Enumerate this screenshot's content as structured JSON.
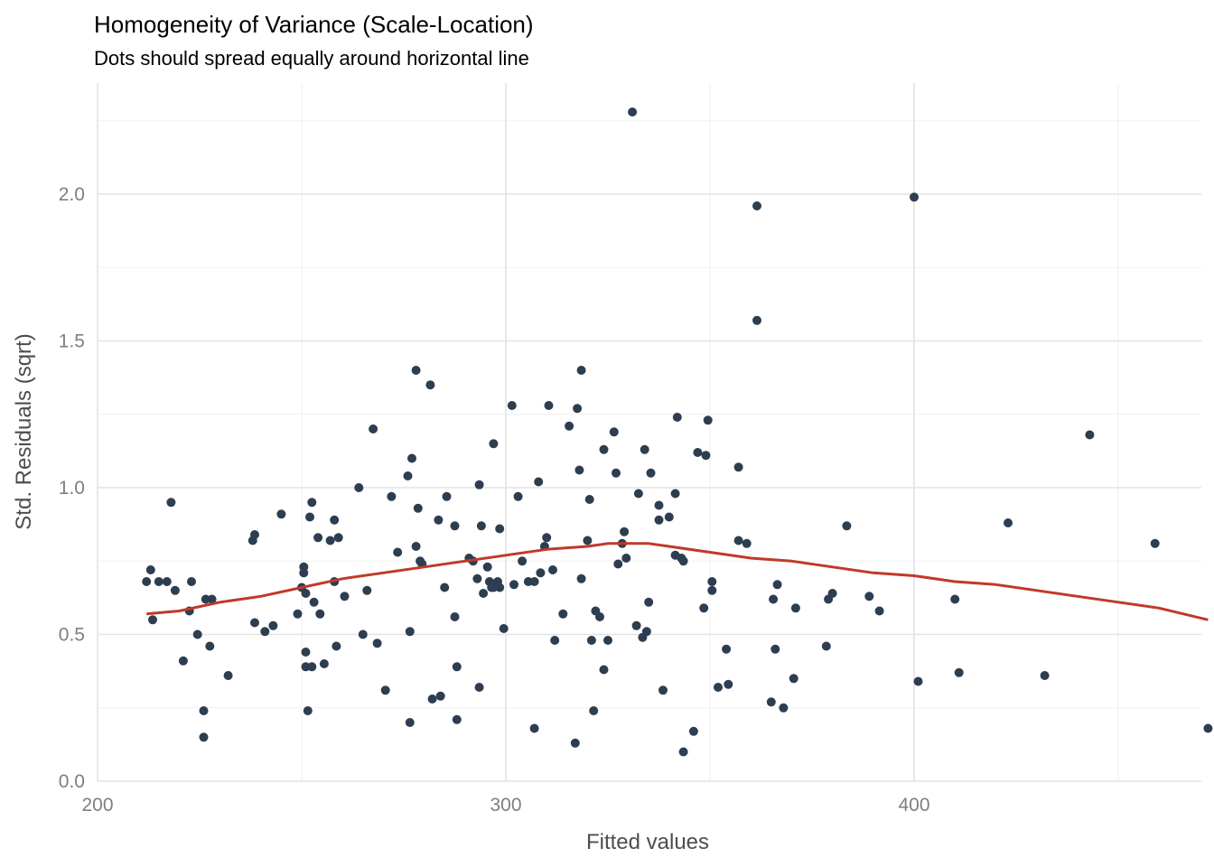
{
  "chart_data": {
    "type": "scatter",
    "title": "Homogeneity of Variance (Scale-Location)",
    "subtitle": "Dots should spread equally around horizontal line",
    "xlabel": "Fitted values",
    "ylabel": "Std. Residuals (sqrt)",
    "xlim": [
      200,
      470
    ],
    "ylim": [
      0,
      2.35
    ],
    "x_ticks": [
      200,
      300,
      400
    ],
    "x_tick_labels": [
      "200",
      "300",
      "400"
    ],
    "y_ticks": [
      0,
      0.5,
      1.0,
      1.5,
      2.0
    ],
    "y_tick_labels": [
      "0.0",
      "0.5",
      "1.0",
      "1.5",
      "2.0"
    ],
    "grid": true,
    "point_color": "#2c3e50",
    "smooth_color": "#c0392b",
    "points": [
      [
        212,
        0.68
      ],
      [
        213,
        0.72
      ],
      [
        213.5,
        0.55
      ],
      [
        215,
        0.68
      ],
      [
        217,
        0.68
      ],
      [
        218,
        0.95
      ],
      [
        219,
        0.65
      ],
      [
        221,
        0.41
      ],
      [
        222.5,
        0.58
      ],
      [
        223,
        0.68
      ],
      [
        224.5,
        0.5
      ],
      [
        226,
        0.24
      ],
      [
        226,
        0.15
      ],
      [
        226.5,
        0.62
      ],
      [
        227.5,
        0.46
      ],
      [
        228,
        0.62
      ],
      [
        232,
        0.36
      ],
      [
        238,
        0.82
      ],
      [
        238.5,
        0.84
      ],
      [
        238.5,
        0.54
      ],
      [
        241,
        0.51
      ],
      [
        243,
        0.53
      ],
      [
        245,
        0.91
      ],
      [
        249,
        0.57
      ],
      [
        250,
        0.66
      ],
      [
        250.5,
        0.71
      ],
      [
        250.5,
        0.73
      ],
      [
        251,
        0.44
      ],
      [
        251,
        0.39
      ],
      [
        251,
        0.64
      ],
      [
        251.5,
        0.24
      ],
      [
        252,
        0.9
      ],
      [
        252.5,
        0.95
      ],
      [
        252.5,
        0.39
      ],
      [
        253,
        0.61
      ],
      [
        254,
        0.83
      ],
      [
        254.5,
        0.57
      ],
      [
        255.5,
        0.4
      ],
      [
        257,
        0.82
      ],
      [
        258,
        0.89
      ],
      [
        258,
        0.68
      ],
      [
        258.5,
        0.46
      ],
      [
        259,
        0.83
      ],
      [
        260.5,
        0.63
      ],
      [
        264,
        1.0
      ],
      [
        265,
        0.5
      ],
      [
        266,
        0.65
      ],
      [
        267.5,
        1.2
      ],
      [
        268.5,
        0.47
      ],
      [
        270.5,
        0.31
      ],
      [
        272,
        0.97
      ],
      [
        273.5,
        0.78
      ],
      [
        276,
        1.04
      ],
      [
        276.5,
        0.2
      ],
      [
        276.5,
        0.51
      ],
      [
        277,
        1.1
      ],
      [
        278,
        1.4
      ],
      [
        278,
        0.8
      ],
      [
        278.5,
        0.93
      ],
      [
        279,
        0.75
      ],
      [
        279.5,
        0.74
      ],
      [
        281.5,
        1.35
      ],
      [
        282,
        0.28
      ],
      [
        283.5,
        0.89
      ],
      [
        284,
        0.29
      ],
      [
        285,
        0.66
      ],
      [
        285.5,
        0.97
      ],
      [
        287.5,
        0.87
      ],
      [
        287.5,
        0.56
      ],
      [
        288,
        0.21
      ],
      [
        288,
        0.39
      ],
      [
        291,
        0.76
      ],
      [
        292,
        0.75
      ],
      [
        293,
        0.69
      ],
      [
        293.5,
        1.01
      ],
      [
        293.5,
        0.32
      ],
      [
        294,
        0.87
      ],
      [
        294.5,
        0.64
      ],
      [
        295.5,
        0.73
      ],
      [
        296,
        0.68
      ],
      [
        296.5,
        0.66
      ],
      [
        297,
        1.15
      ],
      [
        297,
        0.66
      ],
      [
        298,
        0.68
      ],
      [
        298.5,
        0.66
      ],
      [
        298.5,
        0.86
      ],
      [
        299.5,
        0.52
      ],
      [
        301.5,
        1.28
      ],
      [
        302,
        0.67
      ],
      [
        303,
        0.97
      ],
      [
        304,
        0.75
      ],
      [
        305.5,
        0.68
      ],
      [
        307,
        0.68
      ],
      [
        307,
        0.18
      ],
      [
        308,
        1.02
      ],
      [
        308.5,
        0.71
      ],
      [
        309.5,
        0.8
      ],
      [
        310,
        0.83
      ],
      [
        310.5,
        1.28
      ],
      [
        311.5,
        0.72
      ],
      [
        312,
        0.48
      ],
      [
        314,
        0.57
      ],
      [
        315.5,
        1.21
      ],
      [
        317,
        0.13
      ],
      [
        317.5,
        1.27
      ],
      [
        318,
        1.06
      ],
      [
        318.5,
        1.4
      ],
      [
        318.5,
        0.69
      ],
      [
        320,
        0.82
      ],
      [
        320.5,
        0.96
      ],
      [
        321,
        0.48
      ],
      [
        321.5,
        0.24
      ],
      [
        322,
        0.58
      ],
      [
        323,
        0.56
      ],
      [
        324,
        1.13
      ],
      [
        324,
        0.38
      ],
      [
        325,
        0.48
      ],
      [
        326.5,
        1.19
      ],
      [
        327,
        1.05
      ],
      [
        327.5,
        0.74
      ],
      [
        328.5,
        0.81
      ],
      [
        329,
        0.85
      ],
      [
        329.5,
        0.76
      ],
      [
        331,
        2.28
      ],
      [
        332,
        0.53
      ],
      [
        332.5,
        0.98
      ],
      [
        333.5,
        0.49
      ],
      [
        334,
        1.13
      ],
      [
        334.5,
        0.51
      ],
      [
        335,
        0.61
      ],
      [
        335.5,
        1.05
      ],
      [
        337.5,
        0.94
      ],
      [
        337.5,
        0.89
      ],
      [
        338.5,
        0.31
      ],
      [
        340,
        0.9
      ],
      [
        341.5,
        0.77
      ],
      [
        341.5,
        0.98
      ],
      [
        342,
        1.24
      ],
      [
        343,
        0.76
      ],
      [
        343.5,
        0.75
      ],
      [
        343.5,
        0.1
      ],
      [
        346,
        0.17
      ],
      [
        347,
        1.12
      ],
      [
        348.5,
        0.59
      ],
      [
        349,
        1.11
      ],
      [
        349.5,
        1.23
      ],
      [
        350.5,
        0.68
      ],
      [
        350.5,
        0.65
      ],
      [
        352,
        0.32
      ],
      [
        354,
        0.45
      ],
      [
        354.5,
        0.33
      ],
      [
        357,
        1.07
      ],
      [
        357,
        0.82
      ],
      [
        359,
        0.81
      ],
      [
        361.5,
        1.96
      ],
      [
        361.5,
        1.57
      ],
      [
        365,
        0.27
      ],
      [
        365.5,
        0.62
      ],
      [
        366,
        0.45
      ],
      [
        366.5,
        0.67
      ],
      [
        368,
        0.25
      ],
      [
        370.5,
        0.35
      ],
      [
        371,
        0.59
      ],
      [
        378.5,
        0.46
      ],
      [
        379,
        0.62
      ],
      [
        380,
        0.64
      ],
      [
        383.5,
        0.87
      ],
      [
        389,
        0.63
      ],
      [
        391.5,
        0.58
      ],
      [
        400,
        1.99
      ],
      [
        401,
        0.34
      ],
      [
        410,
        0.62
      ],
      [
        411,
        0.37
      ],
      [
        423,
        0.88
      ],
      [
        432,
        0.36
      ],
      [
        443,
        1.18
      ],
      [
        459,
        0.81
      ],
      [
        472,
        0.18
      ]
    ],
    "smooth_line": [
      [
        212,
        0.57
      ],
      [
        220,
        0.58
      ],
      [
        230,
        0.61
      ],
      [
        240,
        0.63
      ],
      [
        250,
        0.66
      ],
      [
        260,
        0.69
      ],
      [
        270,
        0.71
      ],
      [
        280,
        0.73
      ],
      [
        290,
        0.75
      ],
      [
        300,
        0.77
      ],
      [
        310,
        0.79
      ],
      [
        320,
        0.8
      ],
      [
        325,
        0.81
      ],
      [
        330,
        0.81
      ],
      [
        335,
        0.81
      ],
      [
        340,
        0.8
      ],
      [
        350,
        0.78
      ],
      [
        360,
        0.76
      ],
      [
        370,
        0.75
      ],
      [
        380,
        0.73
      ],
      [
        390,
        0.71
      ],
      [
        400,
        0.7
      ],
      [
        410,
        0.68
      ],
      [
        420,
        0.67
      ],
      [
        430,
        0.65
      ],
      [
        440,
        0.63
      ],
      [
        450,
        0.61
      ],
      [
        460,
        0.59
      ],
      [
        472,
        0.55
      ]
    ]
  }
}
